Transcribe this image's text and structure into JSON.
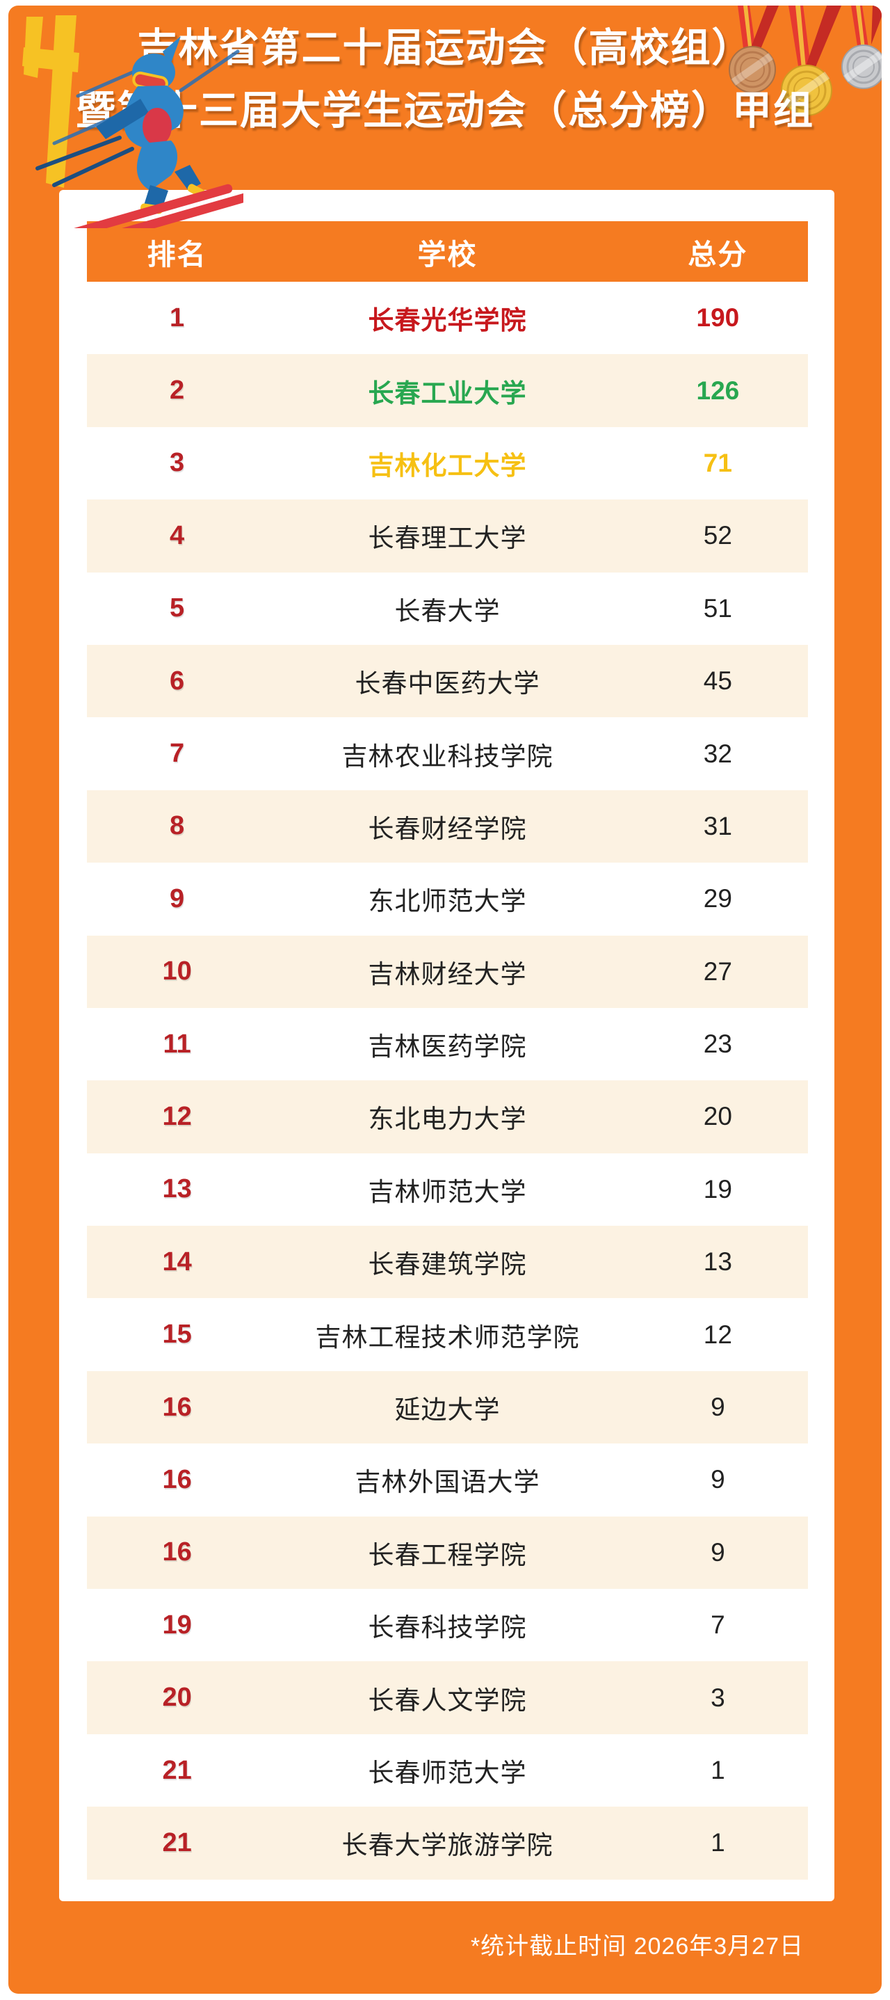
{
  "title": {
    "line1": "吉林省第二十届运动会（高校组）",
    "line2": "暨第十三届大学生运动会（总分榜）甲组"
  },
  "table": {
    "headers": [
      "排名",
      "学校",
      "总分"
    ],
    "rows": [
      {
        "rank": "1",
        "school": "长春光华学院",
        "score": "190",
        "highlight": "red"
      },
      {
        "rank": "2",
        "school": "长春工业大学",
        "score": "126",
        "highlight": "green"
      },
      {
        "rank": "3",
        "school": "吉林化工大学",
        "score": "71",
        "highlight": "gold"
      },
      {
        "rank": "4",
        "school": "长春理工大学",
        "score": "52"
      },
      {
        "rank": "5",
        "school": "长春大学",
        "score": "51"
      },
      {
        "rank": "6",
        "school": "长春中医药大学",
        "score": "45"
      },
      {
        "rank": "7",
        "school": "吉林农业科技学院",
        "score": "32"
      },
      {
        "rank": "8",
        "school": "长春财经学院",
        "score": "31"
      },
      {
        "rank": "9",
        "school": "东北师范大学",
        "score": "29"
      },
      {
        "rank": "10",
        "school": "吉林财经大学",
        "score": "27"
      },
      {
        "rank": "11",
        "school": "吉林医药学院",
        "score": "23"
      },
      {
        "rank": "12",
        "school": "东北电力大学",
        "score": "20"
      },
      {
        "rank": "13",
        "school": "吉林师范大学",
        "score": "19"
      },
      {
        "rank": "14",
        "school": "长春建筑学院",
        "score": "13"
      },
      {
        "rank": "15",
        "school": "吉林工程技术师范学院",
        "score": "12"
      },
      {
        "rank": "16",
        "school": "延边大学",
        "score": "9"
      },
      {
        "rank": "16",
        "school": "吉林外国语大学",
        "score": "9"
      },
      {
        "rank": "16",
        "school": "长春工程学院",
        "score": "9"
      },
      {
        "rank": "19",
        "school": "长春科技学院",
        "score": "7"
      },
      {
        "rank": "20",
        "school": "长春人文学院",
        "score": "3"
      },
      {
        "rank": "21",
        "school": "长春师范大学",
        "score": "1"
      },
      {
        "rank": "21",
        "school": "长春大学旅游学院",
        "score": "1"
      }
    ]
  },
  "footer": {
    "note": "*统计截止时间  2026年3月27日"
  },
  "icons": {
    "skier": "skier-illustration",
    "medals": "bronze-gold-silver-medals"
  },
  "colors": {
    "poster_orange": "#f57b21",
    "row_cream": "#fcf2e2",
    "rank_red": "#b82126",
    "first_place": "#c7181d",
    "second_place": "#28a750",
    "third_place": "#f6c013",
    "body_text": "#222222",
    "header_text": "#ffffff"
  }
}
